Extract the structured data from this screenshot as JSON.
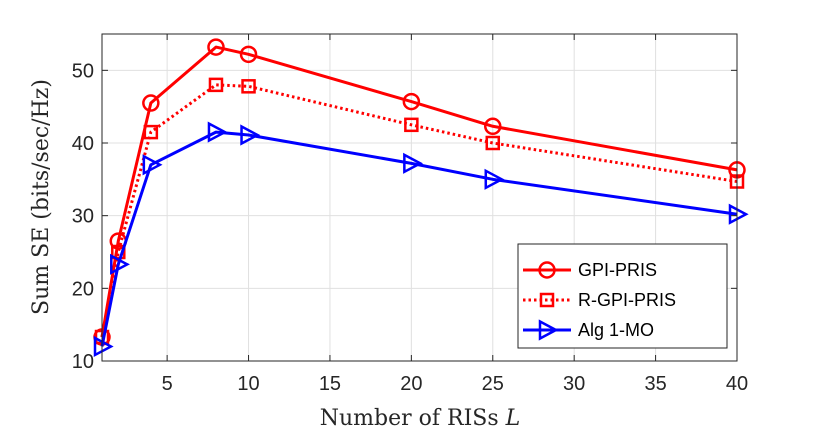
{
  "chart_data": {
    "type": "line",
    "xlabel": "Number of RISs",
    "xlabel_var": "L",
    "ylabel": "Sum SE (bits/sec/Hz)",
    "xlim": [
      1,
      40
    ],
    "ylim": [
      10,
      55
    ],
    "xticks": [
      5,
      10,
      15,
      20,
      25,
      30,
      35,
      40
    ],
    "yticks": [
      10,
      20,
      30,
      40,
      50
    ],
    "grid": true,
    "legend_position": "bottom-right",
    "x": [
      1,
      2,
      4,
      8,
      10,
      20,
      25,
      40
    ],
    "series": [
      {
        "name": "GPI-PRIS",
        "color": "#ff0000",
        "line": "solid",
        "marker": "circle",
        "values": [
          13.3,
          26.5,
          45.5,
          53.2,
          52.2,
          45.7,
          42.3,
          36.3
        ]
      },
      {
        "name": "R-GPI-PRIS",
        "color": "#ff0000",
        "line": "dotted",
        "marker": "square",
        "values": [
          13.3,
          25.0,
          41.5,
          48.0,
          47.8,
          42.5,
          40.0,
          34.7
        ]
      },
      {
        "name": "Alg 1-MO",
        "color": "#0000ff",
        "line": "solid",
        "marker": "triangle-right",
        "values": [
          12.0,
          23.3,
          37.0,
          41.5,
          41.1,
          37.2,
          35.0,
          30.2
        ]
      }
    ]
  }
}
